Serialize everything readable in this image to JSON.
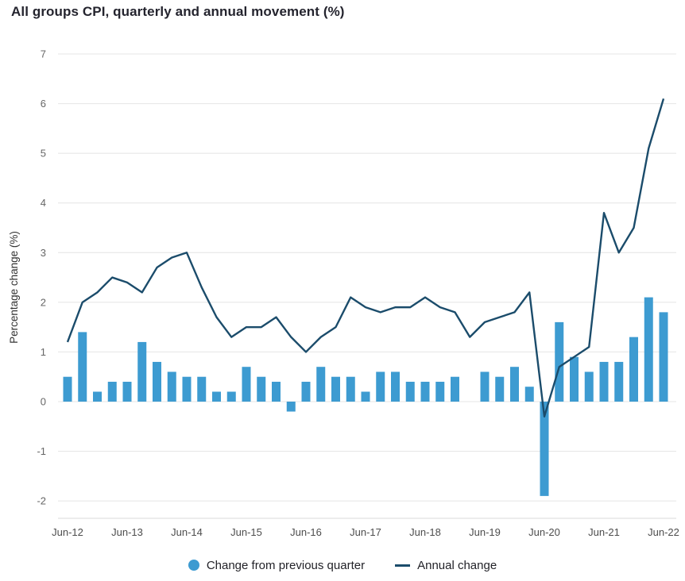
{
  "title": "All groups CPI, quarterly and annual movement (%)",
  "colors": {
    "bar": "#3D9BD1",
    "line": "#1B4C6B",
    "grid": "#E4E4E4",
    "axis_line": "#D8D8D8",
    "y_tick_text": "#666666",
    "x_tick_text": "#4D4D4D",
    "axis_title_text": "#333333",
    "title_text": "#24242E",
    "legend_text": "#222228"
  },
  "legend": [
    {
      "label": "Change from previous quarter",
      "marker": "circle",
      "color": "#3D9BD1"
    },
    {
      "label": "Annual change",
      "marker": "line",
      "color": "#1B4C6B"
    }
  ],
  "chart_data": {
    "type": "bar+line",
    "title": "All groups CPI, quarterly and annual movement (%)",
    "x": [
      "Jun-12",
      "Sep-12",
      "Dec-12",
      "Mar-13",
      "Jun-13",
      "Sep-13",
      "Dec-13",
      "Mar-14",
      "Jun-14",
      "Sep-14",
      "Dec-14",
      "Mar-15",
      "Jun-15",
      "Sep-15",
      "Dec-15",
      "Mar-16",
      "Jun-16",
      "Sep-16",
      "Dec-16",
      "Mar-17",
      "Jun-17",
      "Sep-17",
      "Dec-17",
      "Mar-18",
      "Jun-18",
      "Sep-18",
      "Dec-18",
      "Mar-19",
      "Jun-19",
      "Sep-19",
      "Dec-19",
      "Mar-20",
      "Jun-20",
      "Sep-20",
      "Dec-20",
      "Mar-21",
      "Jun-21",
      "Sep-21",
      "Dec-21",
      "Mar-22",
      "Jun-22"
    ],
    "x_tick_every": 4,
    "xlabel": "",
    "ylabel": "Percentage change (%)",
    "ylim": [
      -2,
      7
    ],
    "yticks": [
      7,
      6,
      5,
      4,
      3,
      2,
      1,
      0,
      -1,
      -2
    ],
    "grid": true,
    "legend_position": "bottom",
    "series": [
      {
        "name": "Change from previous quarter",
        "type": "bar",
        "color": "#3D9BD1",
        "values": [
          0.5,
          1.4,
          0.2,
          0.4,
          0.4,
          1.2,
          0.8,
          0.6,
          0.5,
          0.5,
          0.2,
          0.2,
          0.7,
          0.5,
          0.4,
          -0.2,
          0.4,
          0.7,
          0.5,
          0.5,
          0.2,
          0.6,
          0.6,
          0.4,
          0.4,
          0.4,
          0.5,
          0.0,
          0.6,
          0.5,
          0.7,
          0.3,
          -1.9,
          1.6,
          0.9,
          0.6,
          0.8,
          0.8,
          1.3,
          2.1,
          1.8
        ]
      },
      {
        "name": "Annual change",
        "type": "line",
        "color": "#1B4C6B",
        "values": [
          1.2,
          2.0,
          2.2,
          2.5,
          2.4,
          2.2,
          2.7,
          2.9,
          3.0,
          2.3,
          1.7,
          1.3,
          1.5,
          1.5,
          1.7,
          1.3,
          1.0,
          1.3,
          1.5,
          2.1,
          1.9,
          1.8,
          1.9,
          1.9,
          2.1,
          1.9,
          1.8,
          1.3,
          1.6,
          1.7,
          1.8,
          2.2,
          -0.3,
          0.7,
          0.9,
          1.1,
          3.8,
          3.0,
          3.5,
          5.1,
          6.1
        ]
      }
    ]
  }
}
